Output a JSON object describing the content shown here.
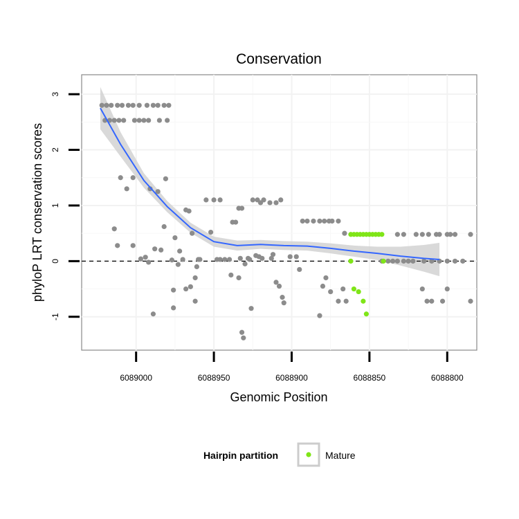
{
  "chart_data": {
    "type": "scatter",
    "title": "Conservation",
    "xlabel": "Genomic Position",
    "ylabel": "phyloP LRT conservation scores",
    "xlim": [
      6089035,
      6088781
    ],
    "ylim": [
      -1.6,
      3.35
    ],
    "x_reversed": true,
    "x_ticks": [
      6089000,
      6088950,
      6088900,
      6088850,
      6088800
    ],
    "x_tick_labels": [
      "6089000",
      "6088950",
      "6088900",
      "6088850",
      "6088800"
    ],
    "y_ticks": [
      -1,
      0,
      1,
      2,
      3
    ],
    "y_tick_labels": [
      "-1",
      "0",
      "1",
      "2",
      "3"
    ],
    "reference_line": {
      "y": 0,
      "style": "dashed"
    },
    "colors": {
      "other": "#8c8c8c",
      "mature": "#7fe517",
      "smooth": "#3366ff",
      "ribbon": "#d2d2d2"
    },
    "legend": {
      "title": "Hairpin partition",
      "entries": [
        "Mature"
      ],
      "position": "bottom"
    },
    "series": [
      {
        "name": "Other",
        "color": "#8c8c8c",
        "points": [
          [
            6089022,
            2.8
          ],
          [
            6089019,
            2.8
          ],
          [
            6089016,
            2.8
          ],
          [
            6089012,
            2.8
          ],
          [
            6089009,
            2.8
          ],
          [
            6089005,
            2.8
          ],
          [
            6089002,
            2.8
          ],
          [
            6088998,
            2.8
          ],
          [
            6088993,
            2.8
          ],
          [
            6088989,
            2.8
          ],
          [
            6088986,
            2.8
          ],
          [
            6088982,
            2.8
          ],
          [
            6088979,
            2.8
          ],
          [
            6089020,
            2.53
          ],
          [
            6089017,
            2.53
          ],
          [
            6089014,
            2.53
          ],
          [
            6089011,
            2.53
          ],
          [
            6089008,
            2.53
          ],
          [
            6089001,
            2.53
          ],
          [
            6088998,
            2.53
          ],
          [
            6088995,
            2.53
          ],
          [
            6088992,
            2.53
          ],
          [
            6088985,
            2.53
          ],
          [
            6088980,
            2.53
          ],
          [
            6089010,
            1.5
          ],
          [
            6089006,
            1.3
          ],
          [
            6089002,
            1.5
          ],
          [
            6088991,
            1.3
          ],
          [
            6088986,
            1.25
          ],
          [
            6088981,
            1.48
          ],
          [
            6088982,
            0.62
          ],
          [
            6089014,
            0.58
          ],
          [
            6089012,
            0.28
          ],
          [
            6089002,
            0.28
          ],
          [
            6088997,
            0.04
          ],
          [
            6088994,
            0.07
          ],
          [
            6088992,
            -0.02
          ],
          [
            6088988,
            0.22
          ],
          [
            6088984,
            0.2
          ],
          [
            6088989,
            -0.95
          ],
          [
            6088977,
            0.02
          ],
          [
            6088976,
            -0.84
          ],
          [
            6088976,
            -0.52
          ],
          [
            6088975,
            0.42
          ],
          [
            6088973,
            -0.06
          ],
          [
            6088972,
            0.18
          ],
          [
            6088970,
            0.03
          ],
          [
            6088968,
            -0.5
          ],
          [
            6088968,
            0.92
          ],
          [
            6088966,
            0.9
          ],
          [
            6088965,
            -0.46
          ],
          [
            6088964,
            0.5
          ],
          [
            6088962,
            -0.72
          ],
          [
            6088962,
            -0.3
          ],
          [
            6088961,
            -0.1
          ],
          [
            6088960,
            0.03
          ],
          [
            6088959,
            0.03
          ],
          [
            6088955,
            1.1
          ],
          [
            6088952,
            0.52
          ],
          [
            6088950,
            1.1
          ],
          [
            6088946,
            1.1
          ],
          [
            6088948,
            0.03
          ],
          [
            6088946,
            0.03
          ],
          [
            6088943,
            0.03
          ],
          [
            6088940,
            0.03
          ],
          [
            6088939,
            -0.25
          ],
          [
            6088938,
            0.7
          ],
          [
            6088936,
            0.7
          ],
          [
            6088934,
            0.95
          ],
          [
            6088932,
            0.95
          ],
          [
            6088934,
            -0.3
          ],
          [
            6088933,
            0.05
          ],
          [
            6088930,
            -0.05
          ],
          [
            6088932,
            -1.28
          ],
          [
            6088931,
            -1.38
          ],
          [
            6088928,
            0.05
          ],
          [
            6088927,
            0.03
          ],
          [
            6088926,
            -0.85
          ],
          [
            6088925,
            1.1
          ],
          [
            6088922,
            1.1
          ],
          [
            6088920,
            1.05
          ],
          [
            6088918,
            1.1
          ],
          [
            6088914,
            1.05
          ],
          [
            6088910,
            1.05
          ],
          [
            6088907,
            1.1
          ],
          [
            6088923,
            0.1
          ],
          [
            6088921,
            0.08
          ],
          [
            6088919,
            0.05
          ],
          [
            6088913,
            0.05
          ],
          [
            6088912,
            0.12
          ],
          [
            6088910,
            -0.38
          ],
          [
            6088908,
            -0.45
          ],
          [
            6088906,
            -0.65
          ],
          [
            6088905,
            -0.75
          ],
          [
            6088901,
            0.08
          ],
          [
            6088897,
            0.08
          ],
          [
            6088895,
            -0.15
          ],
          [
            6088893,
            0.72
          ],
          [
            6088890,
            0.72
          ],
          [
            6088886,
            0.72
          ],
          [
            6088882,
            0.72
          ],
          [
            6088879,
            0.72
          ],
          [
            6088876,
            0.72
          ],
          [
            6088874,
            0.72
          ],
          [
            6088870,
            0.72
          ],
          [
            6088882,
            -0.98
          ],
          [
            6088880,
            -0.45
          ],
          [
            6088878,
            -0.3
          ],
          [
            6088875,
            -0.55
          ],
          [
            6088870,
            -0.72
          ],
          [
            6088866,
            0.5
          ],
          [
            6088865,
            -0.72
          ],
          [
            6088867,
            -0.5
          ],
          [
            6088842,
            0.0
          ],
          [
            6088838,
            0.0
          ],
          [
            6088835,
            0.0
          ],
          [
            6088832,
            0.0
          ],
          [
            6088828,
            0.0
          ],
          [
            6088825,
            0.0
          ],
          [
            6088822,
            0.0
          ],
          [
            6088815,
            0.0
          ],
          [
            6088810,
            0.0
          ],
          [
            6088805,
            0.0
          ],
          [
            6088800,
            0.0
          ],
          [
            6088795,
            0.0
          ],
          [
            6088790,
            0.0
          ],
          [
            6088832,
            0.48
          ],
          [
            6088828,
            0.48
          ],
          [
            6088820,
            0.48
          ],
          [
            6088816,
            0.48
          ],
          [
            6088812,
            0.48
          ],
          [
            6088807,
            0.48
          ],
          [
            6088805,
            0.48
          ],
          [
            6088800,
            0.48
          ],
          [
            6088798,
            0.48
          ],
          [
            6088795,
            0.48
          ],
          [
            6088785,
            0.48
          ],
          [
            6088816,
            -0.5
          ],
          [
            6088813,
            -0.72
          ],
          [
            6088810,
            -0.72
          ],
          [
            6088803,
            -0.72
          ],
          [
            6088800,
            -0.5
          ],
          [
            6088785,
            -0.72
          ]
        ]
      },
      {
        "name": "Mature",
        "color": "#7fe517",
        "points": [
          [
            6088862,
            0.48
          ],
          [
            6088860,
            0.48
          ],
          [
            6088858,
            0.48
          ],
          [
            6088856,
            0.48
          ],
          [
            6088854,
            0.48
          ],
          [
            6088852,
            0.48
          ],
          [
            6088850,
            0.48
          ],
          [
            6088848,
            0.48
          ],
          [
            6088846,
            0.48
          ],
          [
            6088844,
            0.48
          ],
          [
            6088842,
            0.48
          ],
          [
            6088862,
            0.0
          ],
          [
            6088841,
            0.0
          ],
          [
            6088860,
            -0.5
          ],
          [
            6088857,
            -0.55
          ],
          [
            6088854,
            -0.72
          ],
          [
            6088852,
            -0.95
          ]
        ]
      }
    ],
    "smooth": {
      "points": [
        [
          6089023,
          2.75
        ],
        [
          6089010,
          2.1
        ],
        [
          6088995,
          1.45
        ],
        [
          6088980,
          0.98
        ],
        [
          6088965,
          0.6
        ],
        [
          6088950,
          0.35
        ],
        [
          6088935,
          0.28
        ],
        [
          6088920,
          0.3
        ],
        [
          6088905,
          0.28
        ],
        [
          6088890,
          0.27
        ],
        [
          6088875,
          0.23
        ],
        [
          6088860,
          0.18
        ],
        [
          6088845,
          0.14
        ],
        [
          6088830,
          0.09
        ],
        [
          6088815,
          0.05
        ],
        [
          6088805,
          0.03
        ]
      ],
      "band_width": [
        0.38,
        0.22,
        0.13,
        0.1,
        0.09,
        0.09,
        0.09,
        0.08,
        0.08,
        0.08,
        0.09,
        0.1,
        0.12,
        0.17,
        0.24,
        0.3
      ]
    }
  }
}
